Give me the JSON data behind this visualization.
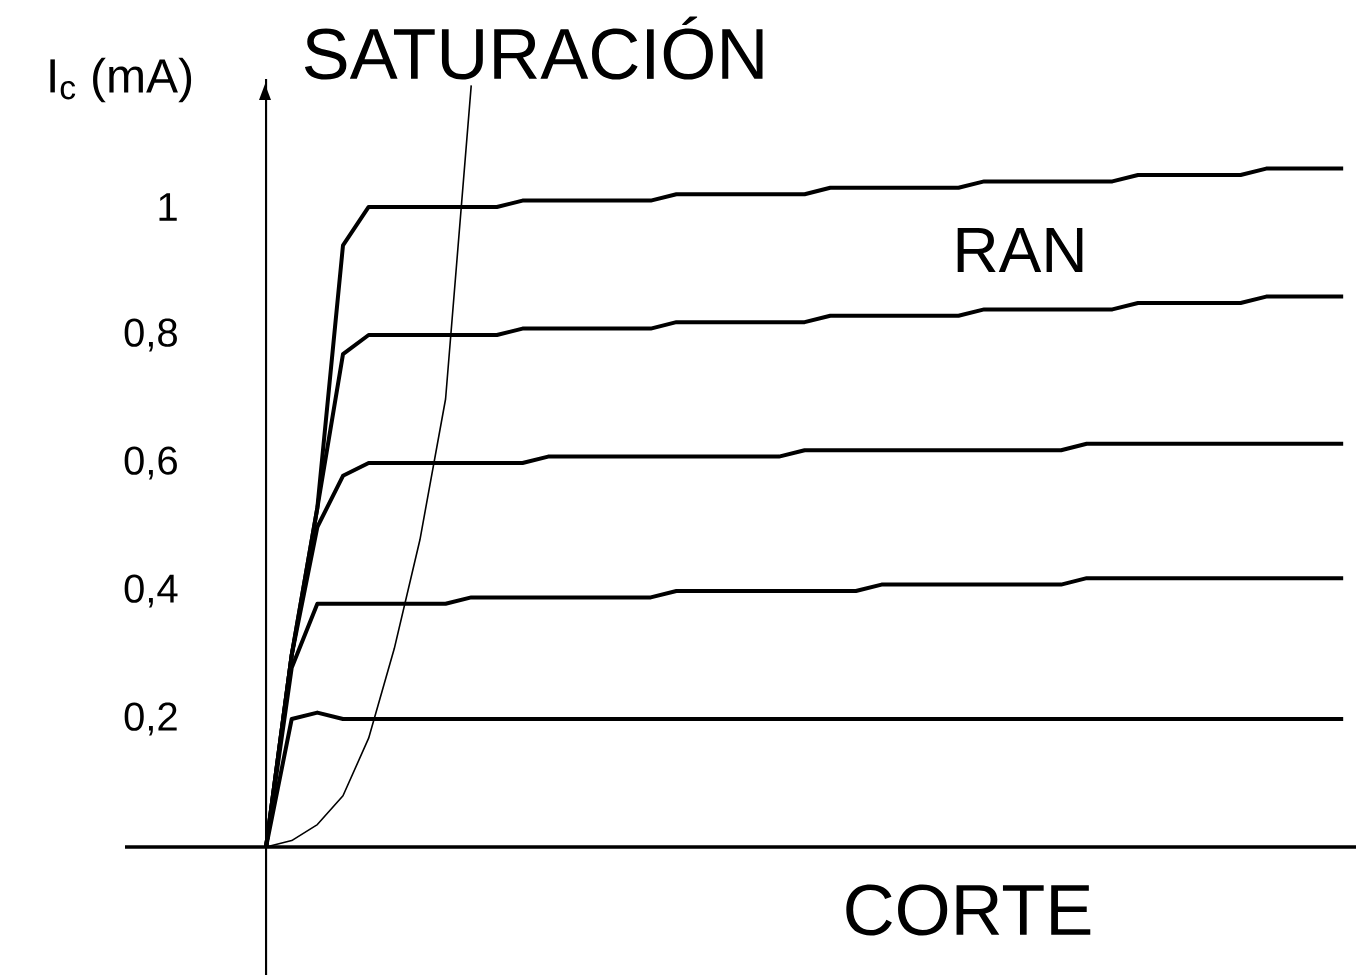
{
  "chart_data": {
    "type": "line",
    "ylabel": "I$_{c}$ (mA)",
    "annotations": [
      "SATURACIÓN",
      "RAN",
      "CORTE"
    ],
    "categories": [
      null,
      null,
      null,
      null,
      null,
      null,
      null,
      null,
      null,
      null,
      null,
      null,
      null,
      null,
      null,
      null,
      null,
      null,
      null,
      null,
      null,
      null,
      null,
      null,
      null,
      null,
      null,
      null,
      null,
      null,
      null,
      null,
      null,
      null,
      null,
      null,
      null,
      null,
      null,
      null,
      null,
      null,
      null,
      null,
      null,
      null,
      null,
      null
    ],
    "ylim": [
      -0.2,
      1.2
    ],
    "yticks": [
      {
        "value": 0.2,
        "label": "0,2"
      },
      {
        "value": 0.4,
        "label": "0,4"
      },
      {
        "value": 0.6,
        "label": "0,6"
      },
      {
        "value": 0.8,
        "label": "0,8"
      },
      1
    ],
    "series": [
      {
        "color": "#000000",
        "values": [
          null,
          null,
          null,
          null,
          null,
          0,
          0.3,
          0.53,
          0.94,
          1.0,
          1.0,
          1.0,
          1.0,
          1.0,
          1.0,
          1.01,
          1.01,
          1.01,
          1.01,
          1.01,
          1.01,
          1.02,
          1.02,
          1.02,
          1.02,
          1.02,
          1.02,
          1.03,
          1.03,
          1.03,
          1.03,
          1.03,
          1.03,
          1.04,
          1.04,
          1.04,
          1.04,
          1.04,
          1.04,
          1.05,
          1.05,
          1.05,
          1.05,
          1.05,
          1.06,
          1.06,
          1.06,
          1.06
        ]
      },
      {
        "color": "#000000",
        "values": [
          null,
          null,
          null,
          null,
          null,
          0,
          0.3,
          0.53,
          0.77,
          0.8,
          0.8,
          0.8,
          0.8,
          0.8,
          0.8,
          0.81,
          0.81,
          0.81,
          0.81,
          0.81,
          0.81,
          0.82,
          0.82,
          0.82,
          0.82,
          0.82,
          0.82,
          0.83,
          0.83,
          0.83,
          0.83,
          0.83,
          0.83,
          0.84,
          0.84,
          0.84,
          0.84,
          0.84,
          0.84,
          0.85,
          0.85,
          0.85,
          0.85,
          0.85,
          0.86,
          0.86,
          0.86,
          0.86
        ]
      },
      {
        "color": "#000000",
        "values": [
          null,
          null,
          null,
          null,
          null,
          0,
          0.3,
          0.5,
          0.58,
          0.6,
          0.6,
          0.6,
          0.6,
          0.6,
          0.6,
          0.6,
          0.61,
          0.61,
          0.61,
          0.61,
          0.61,
          0.61,
          0.61,
          0.61,
          0.61,
          0.61,
          0.62,
          0.62,
          0.62,
          0.62,
          0.62,
          0.62,
          0.62,
          0.62,
          0.62,
          0.62,
          0.62,
          0.63,
          0.63,
          0.63,
          0.63,
          0.63,
          0.63,
          0.63,
          0.63,
          0.63,
          0.63,
          0.63
        ]
      },
      {
        "color": "#000000",
        "values": [
          null,
          null,
          null,
          null,
          null,
          0,
          0.28,
          0.38,
          0.38,
          0.38,
          0.38,
          0.38,
          0.38,
          0.39,
          0.39,
          0.39,
          0.39,
          0.39,
          0.39,
          0.39,
          0.39,
          0.4,
          0.4,
          0.4,
          0.4,
          0.4,
          0.4,
          0.4,
          0.4,
          0.41,
          0.41,
          0.41,
          0.41,
          0.41,
          0.41,
          0.41,
          0.41,
          0.42,
          0.42,
          0.42,
          0.42,
          0.42,
          0.42,
          0.42,
          0.42,
          0.42,
          0.42,
          0.42
        ]
      },
      {
        "color": "#000000",
        "values": [
          null,
          null,
          null,
          null,
          null,
          0,
          0.2,
          0.21,
          0.2,
          0.2,
          0.2,
          0.2,
          0.2,
          0.2,
          0.2,
          0.2,
          0.2,
          0.2,
          0.2,
          0.2,
          0.2,
          0.2,
          0.2,
          0.2,
          0.2,
          0.2,
          0.2,
          0.2,
          0.2,
          0.2,
          0.2,
          0.2,
          0.2,
          0.2,
          0.2,
          0.2,
          0.2,
          0.2,
          0.2,
          0.2,
          0.2,
          0.2,
          0.2,
          0.2,
          0.2,
          0.2,
          0.2,
          0.2
        ]
      },
      {
        "color": "#000000",
        "values": [
          null,
          null,
          null,
          null,
          null,
          0,
          0.01,
          0.035,
          0.08,
          0.17,
          0.31,
          0.48,
          0.7,
          1.19,
          null,
          null,
          null,
          null,
          null,
          null,
          null,
          null,
          null,
          null,
          null,
          null,
          null,
          null,
          null,
          null,
          null,
          null,
          null,
          null,
          null,
          null,
          null,
          null,
          null,
          null,
          null,
          null,
          null,
          null,
          null,
          null,
          null,
          null
        ]
      }
    ]
  }
}
